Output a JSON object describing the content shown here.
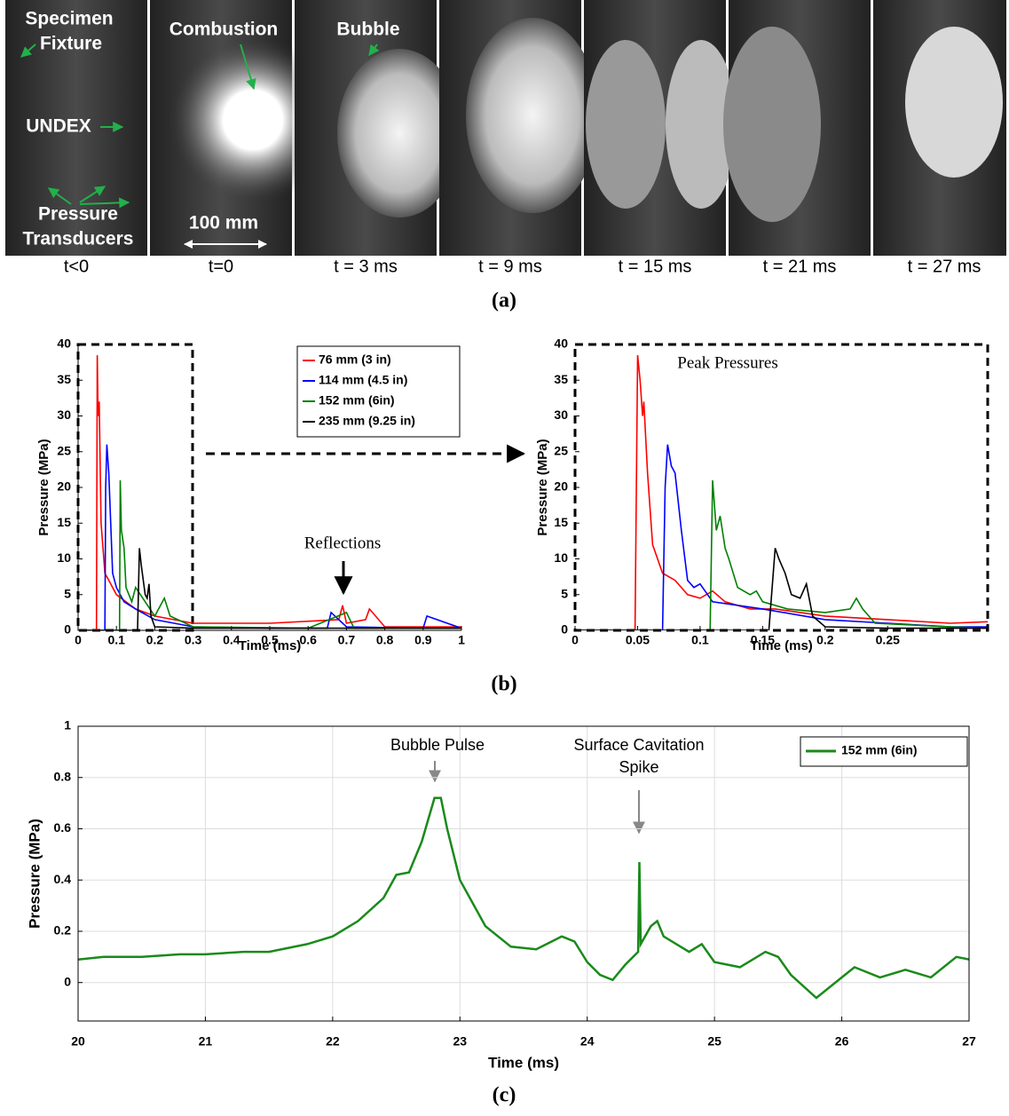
{
  "photo_panel": {
    "frames": [
      "t<0",
      "t=0",
      "t = 3 ms",
      "t = 9 ms",
      "t = 15 ms",
      "t = 21 ms",
      "t = 27 ms"
    ],
    "annotations": {
      "specimen_fixture": [
        "Specimen",
        "Fixture"
      ],
      "undex": "UNDEX",
      "pressure_transducers": [
        "Pressure",
        "Transducers"
      ],
      "combustion": "Combustion",
      "bubble": "Bubble",
      "scale_bar": "100 mm"
    }
  },
  "panel_labels": [
    "(a)",
    "(b)",
    "(c)"
  ],
  "chart_data": [
    {
      "type": "line",
      "xlabel": "Time (ms)",
      "ylabel": "Pressure (MPa)",
      "xlim": [
        0,
        1
      ],
      "ylim": [
        0,
        40
      ],
      "xticks": [
        0,
        0.1,
        0.2,
        0.3,
        0.4,
        0.5,
        0.6,
        0.7,
        0.8,
        0.9,
        1
      ],
      "yticks": [
        0,
        5,
        10,
        15,
        20,
        25,
        30,
        35,
        40
      ],
      "grid": false,
      "legend": "upper right",
      "annotation": "Reflections",
      "series": [
        {
          "name": "76 mm (3 in)",
          "color": "#ff0000",
          "x": [
            0,
            0.048,
            0.05,
            0.052,
            0.055,
            0.06,
            0.07,
            0.08,
            0.1,
            0.15,
            0.2,
            0.3,
            0.5,
            0.68,
            0.69,
            0.7,
            0.75,
            0.76,
            0.8,
            0.9,
            1
          ],
          "values": [
            0,
            0,
            38.5,
            30,
            32,
            15,
            8,
            7,
            5,
            3,
            2,
            1,
            1,
            1.5,
            3.5,
            1,
            1.5,
            3,
            0.5,
            0.5,
            0.5
          ]
        },
        {
          "name": "114 mm (4.5 in)",
          "color": "#0000ff",
          "x": [
            0,
            0.07,
            0.072,
            0.075,
            0.08,
            0.09,
            0.1,
            0.12,
            0.15,
            0.2,
            0.3,
            0.5,
            0.65,
            0.66,
            0.7,
            0.9,
            0.91,
            1
          ],
          "values": [
            0,
            0,
            20,
            26,
            22,
            8,
            6,
            4,
            3,
            1.5,
            0.5,
            0.3,
            0.3,
            2.5,
            0.5,
            0.3,
            2,
            0.3
          ]
        },
        {
          "name": "152 mm (6in)",
          "color": "#008000",
          "x": [
            0,
            0.108,
            0.11,
            0.113,
            0.12,
            0.125,
            0.14,
            0.15,
            0.2,
            0.225,
            0.24,
            0.3,
            0.6,
            0.7,
            0.72,
            0.8,
            1
          ],
          "values": [
            0,
            0,
            21,
            14,
            11.5,
            6,
            4,
            6,
            2,
            4.5,
            2,
            0.5,
            0.3,
            2.5,
            0.3,
            0.3,
            0.3
          ]
        },
        {
          "name": "235 mm (9.25 in)",
          "color": "#000000",
          "x": [
            0,
            0.155,
            0.16,
            0.165,
            0.175,
            0.18,
            0.185,
            0.19,
            0.2,
            0.3,
            0.6,
            0.7,
            1
          ],
          "values": [
            0,
            0,
            11.5,
            9,
            5,
            4.5,
            6.5,
            2,
            0.5,
            0.3,
            0.3,
            0.3,
            0.3
          ]
        }
      ]
    },
    {
      "type": "line",
      "xlabel": "Time (ms)",
      "ylabel": "Pressure (MPa)",
      "xlim": [
        0,
        0.33
      ],
      "ylim": [
        0,
        40
      ],
      "xticks": [
        0,
        0.05,
        0.1,
        0.15,
        0.2,
        0.25
      ],
      "yticks": [
        0,
        5,
        10,
        15,
        20,
        25,
        30,
        35,
        40
      ],
      "grid": false,
      "annotation": "Peak Pressures",
      "series": [
        {
          "color": "#ff0000",
          "x": [
            0,
            0.048,
            0.05,
            0.052,
            0.054,
            0.055,
            0.058,
            0.062,
            0.07,
            0.08,
            0.09,
            0.1,
            0.11,
            0.12,
            0.14,
            0.16,
            0.2,
            0.25,
            0.3,
            0.33
          ],
          "values": [
            0,
            0,
            38.5,
            35,
            30,
            32,
            22,
            12,
            8,
            7,
            5,
            4.5,
            5.5,
            4,
            3,
            3,
            2,
            1.5,
            1,
            1.2
          ]
        },
        {
          "color": "#0000ff",
          "x": [
            0,
            0.07,
            0.072,
            0.074,
            0.077,
            0.08,
            0.085,
            0.09,
            0.095,
            0.1,
            0.11,
            0.13,
            0.15,
            0.2,
            0.25,
            0.3,
            0.33
          ],
          "values": [
            0,
            0,
            20,
            26,
            23,
            22,
            14,
            7,
            6,
            6.5,
            4,
            3.5,
            3,
            1.5,
            1,
            0.5,
            0.5
          ]
        },
        {
          "color": "#008000",
          "x": [
            0,
            0.108,
            0.11,
            0.113,
            0.116,
            0.12,
            0.123,
            0.13,
            0.14,
            0.145,
            0.15,
            0.17,
            0.2,
            0.22,
            0.225,
            0.23,
            0.24,
            0.3,
            0.33
          ],
          "values": [
            0,
            0,
            21,
            14,
            16,
            11.5,
            10,
            6,
            5,
            5.5,
            4,
            3,
            2.5,
            3,
            4.5,
            3,
            1,
            0.5,
            0.3
          ]
        },
        {
          "color": "#000000",
          "x": [
            0,
            0.155,
            0.16,
            0.163,
            0.168,
            0.173,
            0.18,
            0.185,
            0.19,
            0.2,
            0.25,
            0.3,
            0.33
          ],
          "values": [
            0,
            0,
            11.5,
            10,
            8,
            5,
            4.5,
            6.5,
            2,
            0.5,
            0.3,
            0.3,
            0.3
          ]
        }
      ]
    },
    {
      "type": "line",
      "xlabel": "Time (ms)",
      "ylabel": "Pressure (MPa)",
      "xlim": [
        20,
        27
      ],
      "ylim": [
        -0.15,
        1
      ],
      "xticks": [
        20,
        21,
        22,
        23,
        24,
        25,
        26,
        27
      ],
      "yticks": [
        0,
        0.2,
        0.4,
        0.6,
        0.8,
        1
      ],
      "grid": true,
      "legend": "upper right",
      "annotations": {
        "bubble_pulse": "Bubble Pulse",
        "surface_cavitation": [
          "Surface Cavitation",
          "Spike"
        ]
      },
      "series": [
        {
          "name": "152 mm (6in)",
          "color": "#1a8a1a",
          "x": [
            20,
            20.2,
            20.5,
            20.8,
            21,
            21.3,
            21.5,
            21.8,
            22,
            22.2,
            22.4,
            22.5,
            22.6,
            22.7,
            22.8,
            22.85,
            22.9,
            23,
            23.2,
            23.4,
            23.6,
            23.8,
            23.9,
            24,
            24.1,
            24.2,
            24.3,
            24.4,
            24.41,
            24.42,
            24.5,
            24.55,
            24.6,
            24.8,
            24.9,
            25,
            25.2,
            25.4,
            25.5,
            25.6,
            25.8,
            26,
            26.1,
            26.3,
            26.5,
            26.7,
            26.9,
            27
          ],
          "values": [
            0.09,
            0.1,
            0.1,
            0.11,
            0.11,
            0.12,
            0.12,
            0.15,
            0.18,
            0.24,
            0.33,
            0.42,
            0.43,
            0.55,
            0.72,
            0.72,
            0.6,
            0.4,
            0.22,
            0.14,
            0.13,
            0.18,
            0.16,
            0.08,
            0.03,
            0.01,
            0.07,
            0.12,
            0.47,
            0.15,
            0.22,
            0.24,
            0.18,
            0.12,
            0.15,
            0.08,
            0.06,
            0.12,
            0.1,
            0.03,
            -0.06,
            0.02,
            0.06,
            0.02,
            0.05,
            0.02,
            0.1,
            0.09
          ]
        }
      ]
    }
  ]
}
